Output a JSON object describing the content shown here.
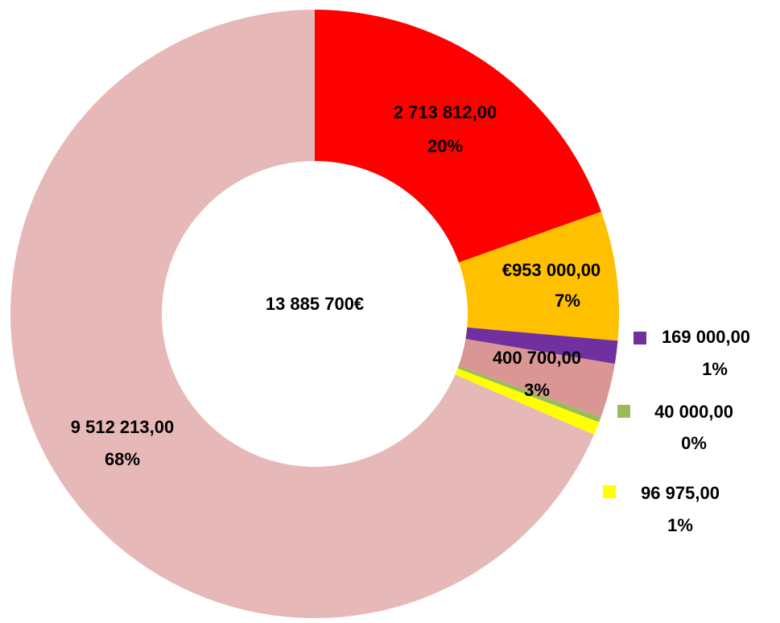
{
  "chart_data": {
    "type": "pie",
    "center_label": "13 885 700€",
    "categories": [
      null,
      null,
      null,
      null,
      null,
      null,
      null
    ],
    "values": [
      2713812,
      953000,
      169000,
      400700,
      40000,
      96975,
      9512213
    ],
    "value_labels": [
      "2 713 812,00",
      "€953 000,00",
      "169 000,00",
      "400 700,00",
      "40 000,00",
      "96 975,00",
      "9 512 213,00"
    ],
    "percent_labels": [
      "20%",
      "7%",
      "1%",
      "3%",
      "0%",
      "1%",
      "68%"
    ],
    "colors": [
      "#ff0000",
      "#ffc000",
      "#7030a0",
      "#da9694",
      "#9bbb59",
      "#ffff00",
      "#e6b8b7"
    ]
  }
}
